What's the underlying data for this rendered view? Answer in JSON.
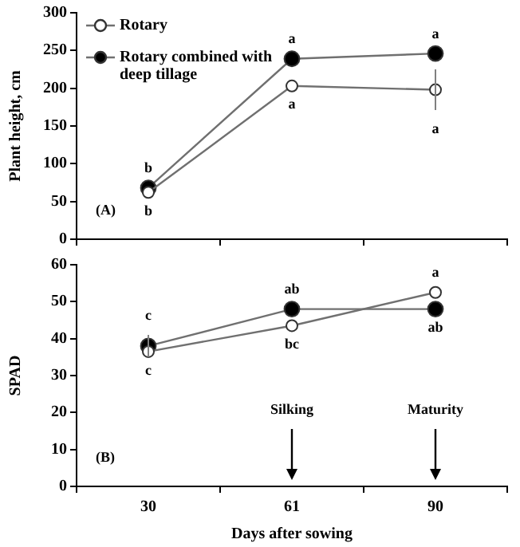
{
  "chart_data": [
    {
      "type": "line",
      "categories": [
        "30",
        "61",
        "90"
      ],
      "ylabel": "Plant height, cm",
      "ylim": [
        0,
        300
      ],
      "yticks": [
        0,
        50,
        100,
        150,
        200,
        250,
        300
      ],
      "tick_labels": "y",
      "legend": "top left",
      "marker": "circle",
      "series": [
        {
          "name": "Rotary",
          "color": "#ffffff",
          "values": [
            62,
            203,
            198
          ],
          "errors": [
            null,
            null,
            27
          ]
        },
        {
          "name": "Rotary combined with deep tillage",
          "color": "#000000",
          "values": [
            68,
            239,
            246
          ],
          "errors": [
            null,
            null,
            null
          ]
        }
      ],
      "annotations": [
        "(A)",
        {
          "text": "b",
          "x": "30",
          "y": 68
        },
        {
          "text": "b",
          "x": "30",
          "y": 62
        },
        {
          "text": "a",
          "x": "61",
          "y": 239
        },
        {
          "text": "a",
          "x": "61",
          "y": 203
        },
        {
          "text": "a",
          "x": "90",
          "y": 246
        },
        {
          "text": "a",
          "x": "90",
          "y": 198
        }
      ]
    },
    {
      "type": "line",
      "categories": [
        "30",
        "61",
        "90"
      ],
      "xlabel": "Days after sowing",
      "ylabel": "SPAD",
      "ylim": [
        0,
        60
      ],
      "yticks": [
        0,
        10,
        20,
        30,
        40,
        50,
        60
      ],
      "marker": "circle",
      "series": [
        {
          "color": "#ffffff",
          "values": [
            36.5,
            43.5,
            52.5
          ],
          "errors": [
            null,
            null,
            null
          ]
        },
        {
          "color": "#000000",
          "values": [
            38,
            48,
            48
          ],
          "errors": [
            3,
            null,
            null
          ]
        }
      ],
      "annotations": [
        "(B)",
        {
          "text": "c",
          "x": "30",
          "y": 38
        },
        {
          "text": "c",
          "x": "30",
          "y": 36.5
        },
        {
          "text": "ab",
          "x": "61",
          "y": 48
        },
        {
          "text": "bc",
          "x": "61",
          "y": 43.5
        },
        {
          "text": "a",
          "x": "90",
          "y": 52.5
        },
        {
          "text": "ab",
          "x": "90",
          "y": 48
        },
        "Silking",
        "Maturity"
      ]
    }
  ]
}
